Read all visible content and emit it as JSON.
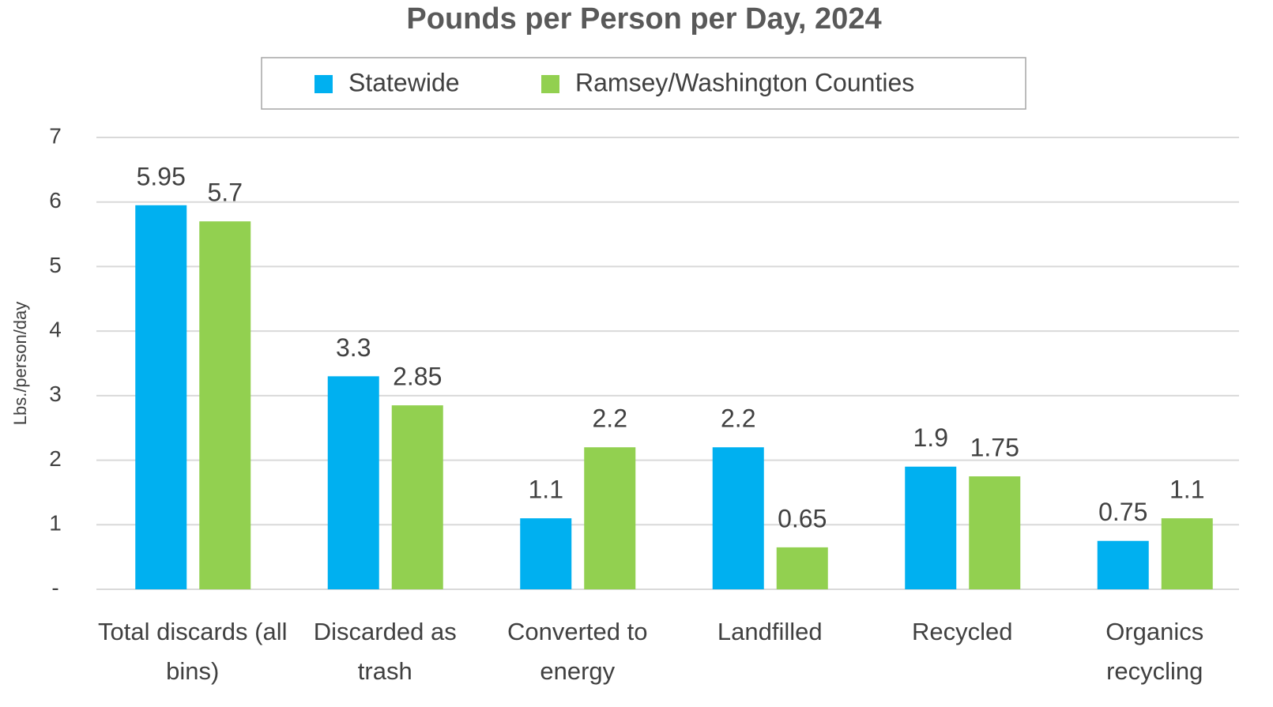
{
  "chart_data": {
    "type": "bar",
    "title": "Pounds per Person per Day, 2024",
    "y_label": "Lbs./person/day",
    "categories": [
      "Total discards (all bins)",
      "Discarded as trash",
      "Converted to energy",
      "Landfilled",
      "Recycled",
      "Organics recycling"
    ],
    "series": [
      {
        "name": "Statewide",
        "color": "#00b0f0",
        "values": [
          5.95,
          3.3,
          1.1,
          2.2,
          1.9,
          0.75
        ]
      },
      {
        "name": "Ramsey/Washington Counties",
        "color": "#92d050",
        "values": [
          5.7,
          2.85,
          2.2,
          0.65,
          1.75,
          1.1
        ]
      }
    ],
    "ylim": [
      0,
      7
    ],
    "yticks": [
      {
        "value": 0,
        "label": "-"
      },
      1,
      2,
      3,
      4,
      5,
      6,
      7
    ],
    "grid": true,
    "legend": "top"
  }
}
